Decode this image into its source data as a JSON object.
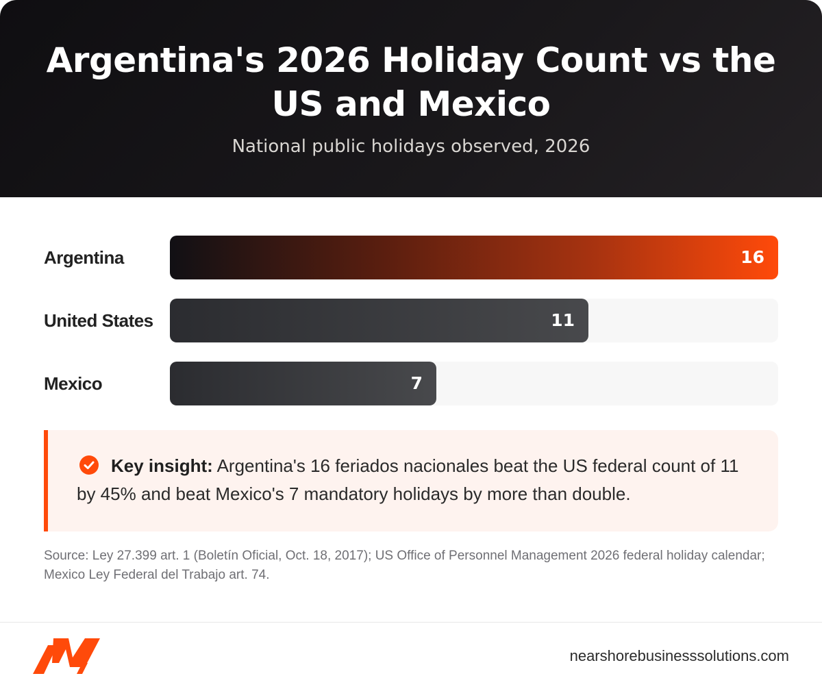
{
  "header": {
    "title": "Argentina's 2026 Holiday Count vs the US and Mexico",
    "subtitle": "National public holidays observed, 2026"
  },
  "chart_data": {
    "type": "bar",
    "orientation": "horizontal",
    "title": "Argentina's 2026 Holiday Count vs the US and Mexico",
    "subtitle": "National public holidays observed, 2026",
    "categories": [
      "Argentina",
      "United States",
      "Mexico"
    ],
    "values": [
      16,
      11,
      7
    ],
    "xlim": [
      0,
      16
    ],
    "grid": false,
    "colors": {
      "accent_end": "#ff4a0a",
      "accent_start": "#111014",
      "neutral": "#48494c"
    }
  },
  "insight": {
    "label": "Key insight:",
    "text": " Argentina's 16 feriados nacionales beat the US federal count of 11 by 45% and beat Mexico's 7 mandatory holidays by more than double."
  },
  "source": "Source: Ley 27.399 art. 1 (Boletín Oficial, Oct. 18, 2017); US Office of Personnel Management 2026 federal holiday calendar; Mexico Ley Federal del Trabajo art. 74.",
  "footer": {
    "logo_icon": "brand-logo-icon",
    "website": "nearshorebusinesssolutions.com"
  }
}
